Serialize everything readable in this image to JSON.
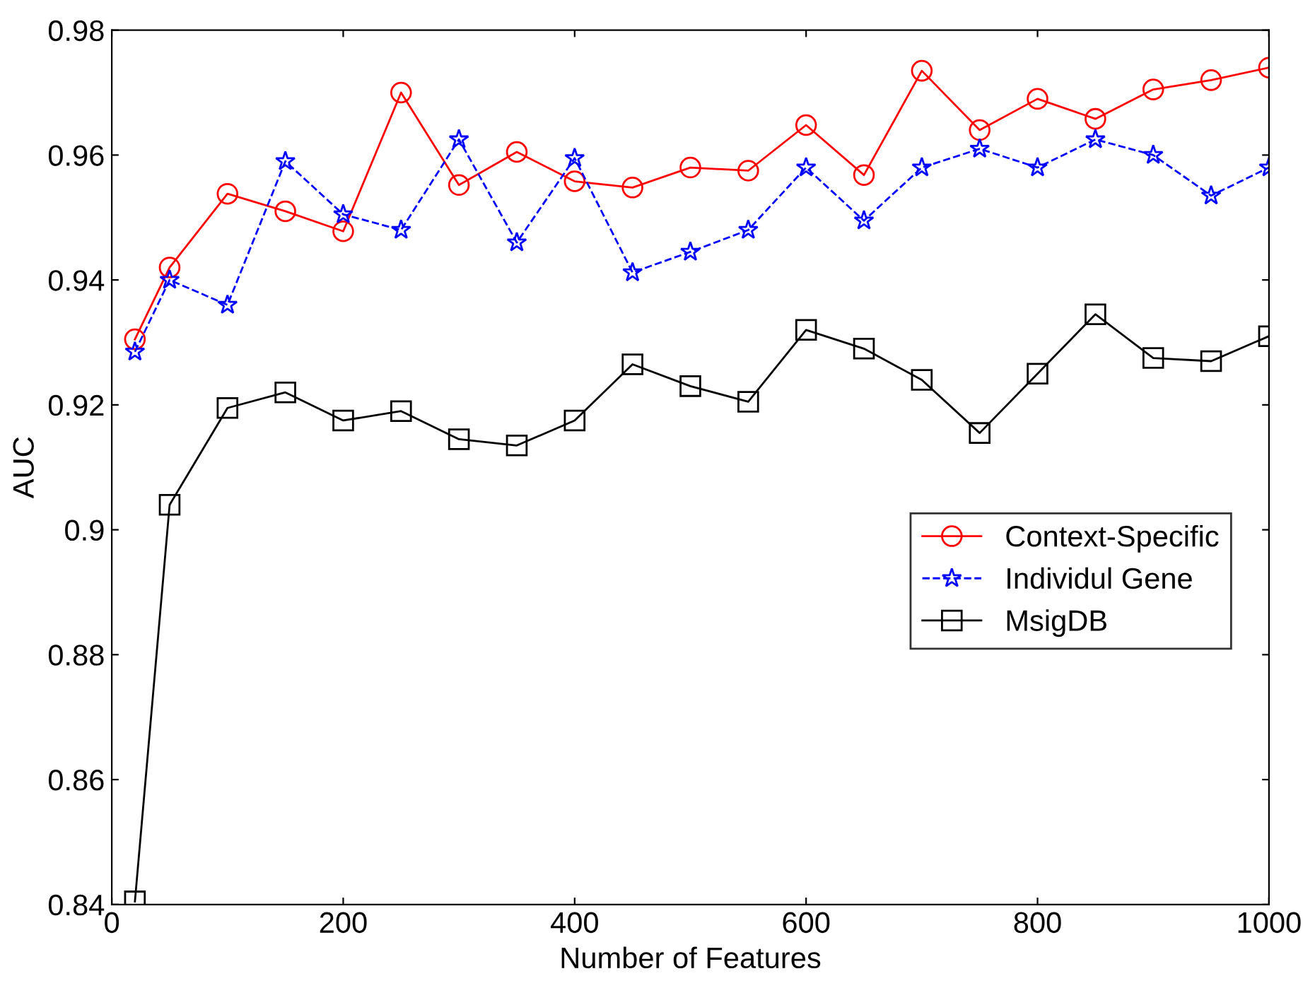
{
  "chart_data": {
    "type": "line",
    "xlabel": "Number of Features",
    "ylabel": "AUC",
    "x": [
      20,
      50,
      100,
      150,
      200,
      250,
      300,
      350,
      400,
      450,
      500,
      550,
      600,
      650,
      700,
      750,
      800,
      850,
      900,
      950,
      1000
    ],
    "series": [
      {
        "name": "Context-Specific",
        "color": "#ff0000",
        "marker": "circle",
        "line_style": "solid",
        "values": [
          0.9305,
          0.942,
          0.9538,
          0.951,
          0.9478,
          0.97,
          0.9552,
          0.9605,
          0.9558,
          0.9548,
          0.958,
          0.9575,
          0.9648,
          0.9568,
          0.9735,
          0.964,
          0.969,
          0.9658,
          0.9705,
          0.972,
          0.974
        ]
      },
      {
        "name": "Individul Gene",
        "color": "#0000ff",
        "marker": "star",
        "line_style": "dashed",
        "values": [
          0.9285,
          0.94,
          0.936,
          0.959,
          0.9505,
          0.948,
          0.9625,
          0.946,
          0.9595,
          0.9412,
          0.9445,
          0.948,
          0.958,
          0.9495,
          0.958,
          0.961,
          0.958,
          0.9625,
          0.96,
          0.9535,
          0.958
        ]
      },
      {
        "name": "MsigDB",
        "color": "#000000",
        "marker": "square",
        "line_style": "solid",
        "values": [
          0.8405,
          0.904,
          0.9195,
          0.922,
          0.9175,
          0.919,
          0.9145,
          0.9135,
          0.9175,
          0.9265,
          0.923,
          0.9205,
          0.932,
          0.929,
          0.924,
          0.9155,
          0.925,
          0.9345,
          0.9275,
          0.927,
          0.931
        ]
      }
    ],
    "xlim": [
      0,
      1000
    ],
    "xticks": [
      0,
      200,
      400,
      600,
      800,
      1000
    ],
    "ylim": [
      0.84,
      0.98
    ],
    "yticks": [
      {
        "value": 0.84,
        "label": "0.84"
      },
      {
        "value": 0.86,
        "label": "0.86"
      },
      {
        "value": 0.88,
        "label": "0.88"
      },
      {
        "value": 0.9,
        "label": "0.9"
      },
      {
        "value": 0.92,
        "label": "0.92"
      },
      {
        "value": 0.94,
        "label": "0.94"
      },
      {
        "value": 0.96,
        "label": "0.96"
      },
      {
        "value": 0.98,
        "label": "0.98"
      }
    ],
    "grid": false,
    "legend": "right"
  }
}
